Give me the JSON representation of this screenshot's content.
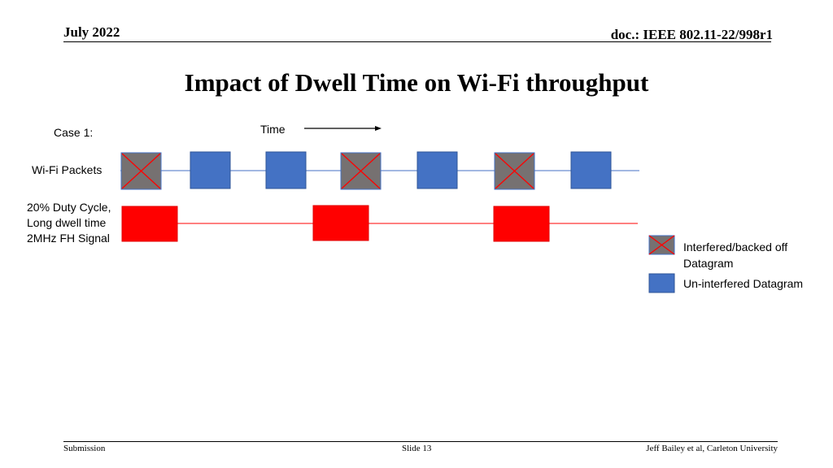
{
  "header": {
    "date": "July 2022",
    "doc": "doc.: IEEE 802.11-22/998r1"
  },
  "title": "Impact of Dwell Time on Wi-Fi throughput",
  "diagram": {
    "case_label": "Case 1:",
    "time_label": "Time",
    "wifi_label": "Wi-Fi Packets",
    "fh_label_lines": [
      "20% Duty Cycle,",
      "Long dwell time",
      "2MHz FH Signal"
    ],
    "packets": [
      "interfered",
      "ok",
      "ok",
      "interfered",
      "ok",
      "interfered",
      "ok"
    ],
    "fh_bursts": 3,
    "colors": {
      "ok": "#4472c4",
      "interfered": "#767171",
      "cross": "#ff0000",
      "fh": "#ff0000",
      "wifi_line": "#4472c4"
    }
  },
  "legend": {
    "interfered_line1": "Interfered/backed off",
    "interfered_line2": "Datagram",
    "ok": "Un-interfered Datagram"
  },
  "footer": {
    "left": "Submission",
    "center": "Slide 13",
    "right": "Jeff Bailey et al, Carleton University"
  }
}
